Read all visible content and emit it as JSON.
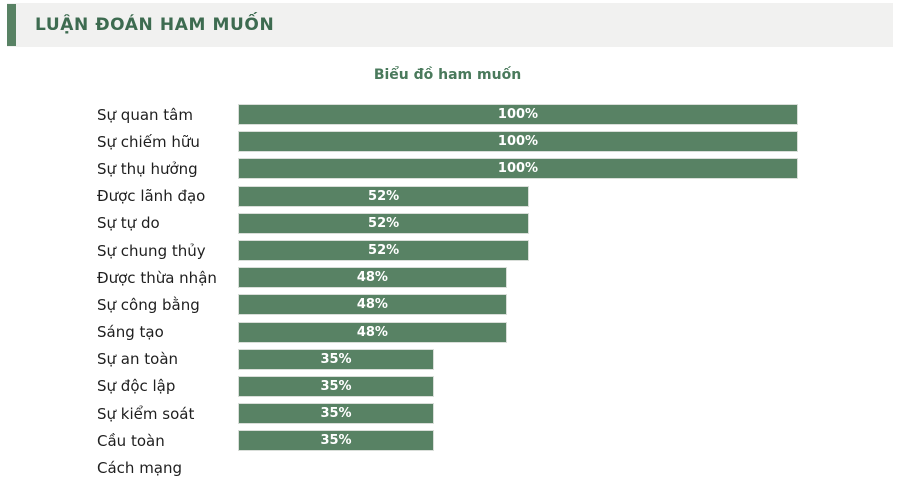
{
  "header": {
    "title": "LUẬN ĐOÁN HAM MUỐN"
  },
  "colors": {
    "bar_green": "#588264",
    "header_background": "#f1f1f0",
    "header_text_green": "#3d6b50",
    "chart_title_green": "#4a7a5c",
    "accent_bar_green": "#588264",
    "bar_value_text": "#ffffff",
    "category_text": "#1f1f1f"
  },
  "chart_data": {
    "type": "bar",
    "orientation": "horizontal",
    "title": "Biểu đồ ham muốn",
    "categories": [
      "Sự quan tâm",
      "Sự chiếm hữu",
      "Sự thụ hưởng",
      "Được lãnh đạo",
      "Sự tự do",
      "Sự chung thủy",
      "Được thừa nhận",
      "Sự công bằng",
      "Sáng tạo",
      "Sự an toàn",
      "Sự độc lập",
      "Sự kiểm soát",
      "Cầu toàn",
      "Cách mạng"
    ],
    "values": [
      100,
      100,
      100,
      52,
      52,
      52,
      48,
      48,
      48,
      35,
      35,
      35,
      35,
      0
    ],
    "value_labels": [
      "100%",
      "100%",
      "100%",
      "52%",
      "52%",
      "52%",
      "48%",
      "48%",
      "48%",
      "35%",
      "35%",
      "35%",
      "35%",
      ""
    ],
    "xlabel": "",
    "ylabel": "",
    "xlim": [
      0,
      100
    ],
    "grid": false,
    "legend": false,
    "bar_color": "#588264",
    "value_label_position": "inside-center"
  }
}
